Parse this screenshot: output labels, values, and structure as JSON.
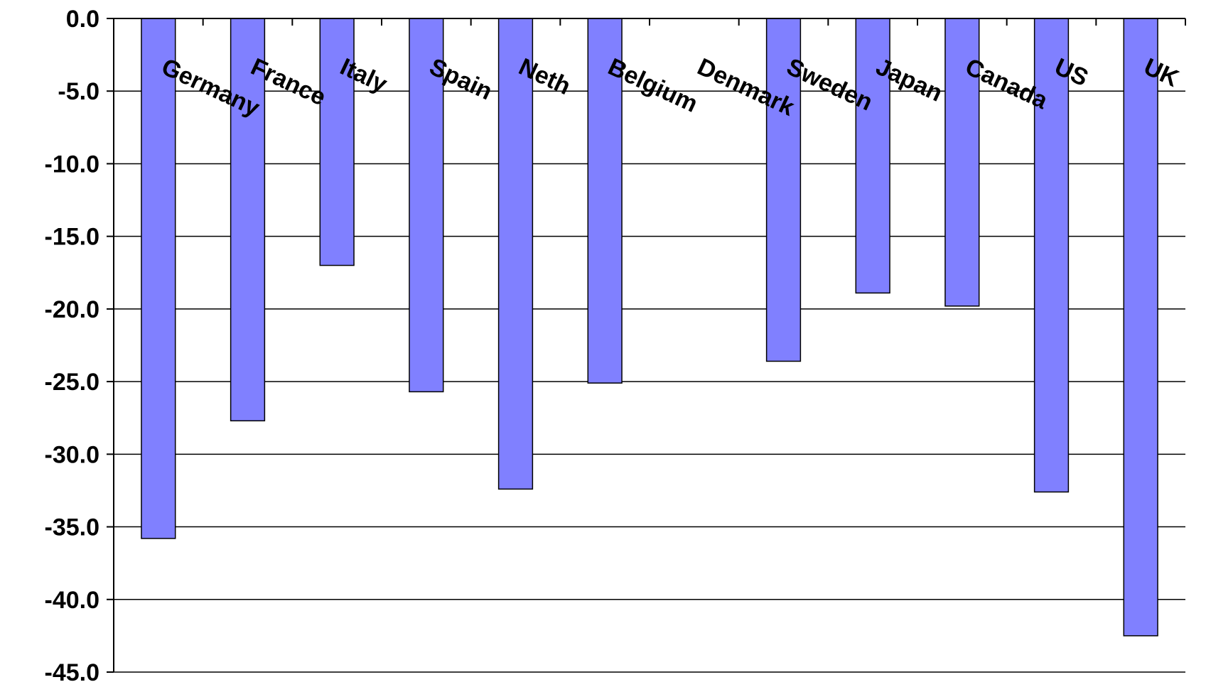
{
  "chart_data": {
    "type": "bar",
    "categories": [
      "Germany",
      "France",
      "Italy",
      "Spain",
      "Neth",
      "Belgium",
      "Denmark",
      "Sweden",
      "Japan",
      "Canada",
      "US",
      "UK"
    ],
    "values": [
      -35.8,
      -27.7,
      -17.0,
      -25.7,
      -32.4,
      -25.1,
      null,
      -23.6,
      -18.9,
      -19.8,
      -32.6,
      -42.5
    ],
    "ylim": [
      -45.0,
      0.0
    ],
    "yticks": [
      "0.0",
      "-5.0",
      "-10.0",
      "-15.0",
      "-20.0",
      "-25.0",
      "-30.0",
      "-35.0",
      "-40.0",
      "-45.0"
    ],
    "ytick_values": [
      0,
      -5,
      -10,
      -15,
      -20,
      -25,
      -30,
      -35,
      -40,
      -45
    ],
    "grid": true,
    "legend": "none",
    "bar_color": "#8080ff"
  }
}
